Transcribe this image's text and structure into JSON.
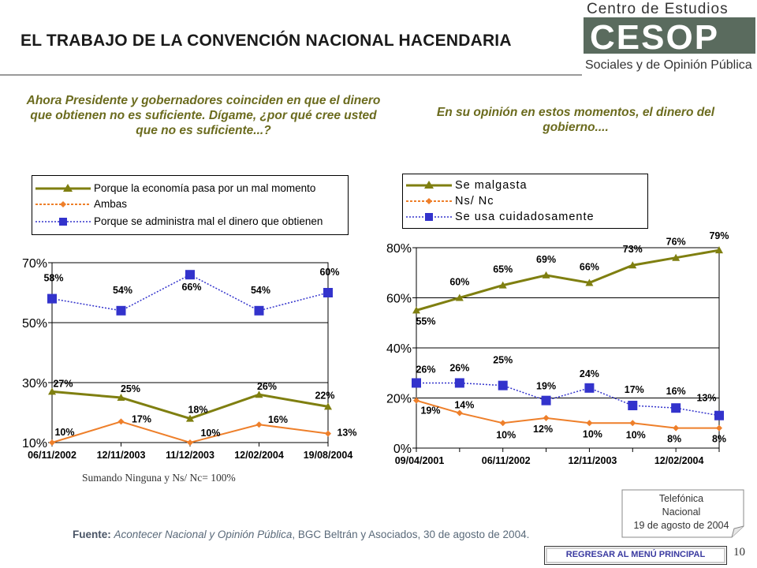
{
  "header": {
    "title": "EL TRABAJO DE LA CONVENCIÓN NACIONAL HACENDARIA",
    "logo_line1": "Centro de Estudios",
    "logo_mark": "CESOP",
    "logo_line2": "Sociales y de Opinión Pública"
  },
  "question_left": "Ahora Presidente y gobernadores coinciden en que el dinero que obtienen no es suficiente. Dígame, ¿por qué cree usted que no es suficiente...?",
  "question_right": "En su opinión en estos momentos, el dinero del gobierno....",
  "note_left": "Sumando Ninguna y Ns/ Nc= 100%",
  "source": {
    "label": "Fuente:",
    "italic": "Acontecer Nacional y Opinión Pública",
    "rest": ", BGC Beltrán y Asociados, 30 de agosto de 2004."
  },
  "callout": {
    "line1": "Telefónica",
    "line2": "Nacional",
    "line3": "19 de agosto de 2004"
  },
  "menu_button": "REGRESAR AL MENÚ PRINCIPAL",
  "page_number": "10",
  "colors": {
    "olive": "#7f7f10",
    "orange": "#ee7f2a",
    "blue": "#3333cc",
    "question": "#6b6b1e"
  },
  "chart_data": [
    {
      "type": "line",
      "categories": [
        "06/11/2002",
        "12/11/2003",
        "11/12/2003",
        "12/02/2004",
        "19/08/2004"
      ],
      "ylim": [
        10,
        70
      ],
      "yticks": [
        "70%",
        "50%",
        "30%",
        "10%"
      ],
      "grid": true,
      "legend_position": "top",
      "series": [
        {
          "name": "Porque la economía pasa por un mal momento",
          "values": [
            27,
            25,
            18,
            26,
            22
          ],
          "labels": [
            "27%",
            "25%",
            "18%",
            "26%",
            "22%"
          ],
          "color": "#7f7f10",
          "marker": "triangle"
        },
        {
          "name": "Ambas",
          "values": [
            10,
            17,
            10,
            16,
            13
          ],
          "labels": [
            "10%",
            "17%",
            "10%",
            "16%",
            "13%"
          ],
          "color": "#ee7f2a",
          "marker": "diamond"
        },
        {
          "name": "Porque se administra mal el dinero que obtienen",
          "values": [
            58,
            54,
            66,
            54,
            60
          ],
          "labels": [
            "58%",
            "54%",
            "66%",
            "54%",
            "60%"
          ],
          "color": "#3333cc",
          "marker": "square"
        }
      ]
    },
    {
      "type": "line",
      "categories": [
        "09/04/2001",
        "",
        "06/11/2002",
        "",
        "12/11/2003",
        "",
        "12/02/2004",
        ""
      ],
      "ylim": [
        0,
        80
      ],
      "yticks": [
        "80%",
        "60%",
        "40%",
        "20%",
        "0%"
      ],
      "grid": true,
      "legend_position": "top",
      "series": [
        {
          "name": "Se malgasta",
          "values": [
            55,
            60,
            65,
            69,
            66,
            73,
            76,
            79
          ],
          "labels": [
            "55%",
            "60%",
            "65%",
            "69%",
            "66%",
            "73%",
            "76%",
            "79%"
          ],
          "color": "#7f7f10",
          "marker": "triangle"
        },
        {
          "name": "Ns/ Nc",
          "values": [
            19,
            14,
            10,
            12,
            10,
            10,
            8,
            8
          ],
          "labels": [
            "19%",
            "14%",
            "10%",
            "12%",
            "10%",
            "10%",
            "8%",
            "8%"
          ],
          "color": "#ee7f2a",
          "marker": "diamond"
        },
        {
          "name": "Se usa cuidadosamente",
          "values": [
            26,
            26,
            25,
            19,
            24,
            17,
            16,
            13
          ],
          "labels": [
            "26%",
            "26%",
            "25%",
            "19%",
            "24%",
            "17%",
            "16%",
            "13%"
          ],
          "color": "#3333cc",
          "marker": "square"
        }
      ]
    }
  ]
}
